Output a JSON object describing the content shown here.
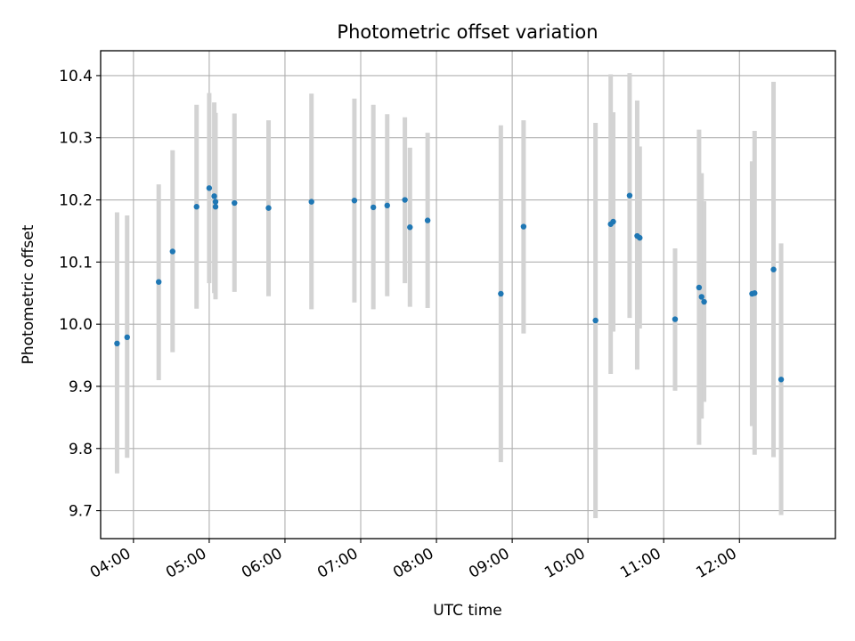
{
  "chart_data": {
    "type": "scatter",
    "title": "Photometric offset variation",
    "xlabel": "UTC time",
    "ylabel": "Photometric offset",
    "grid": true,
    "x_unit": "UTC time of day (HH:MM)",
    "xlim": [
      "03:34",
      "13:16"
    ],
    "ylim": [
      9.655,
      10.44
    ],
    "x_tick_labels": [
      "04:00",
      "05:00",
      "06:00",
      "07:00",
      "08:00",
      "09:00",
      "10:00",
      "11:00",
      "12:00"
    ],
    "x_ticks": [
      "04:00",
      "05:00",
      "06:00",
      "07:00",
      "08:00",
      "09:00",
      "10:00",
      "11:00",
      "12:00"
    ],
    "y_ticks": [
      9.7,
      9.8,
      9.9,
      10.0,
      10.1,
      10.2,
      10.3,
      10.4
    ],
    "y_tick_labels": [
      "9.7",
      "9.8",
      "9.9",
      "10.0",
      "10.1",
      "10.2",
      "10.3",
      "10.4"
    ],
    "marker_color": "#1f77b4",
    "errorbar_color": "#d3d3d3",
    "points": [
      {
        "t": "03:47",
        "y": 9.969,
        "ylo": 9.76,
        "yhi": 10.18
      },
      {
        "t": "03:55",
        "y": 9.979,
        "ylo": 9.785,
        "yhi": 10.175
      },
      {
        "t": "04:20",
        "y": 10.068,
        "ylo": 9.91,
        "yhi": 10.225
      },
      {
        "t": "04:31",
        "y": 10.117,
        "ylo": 9.955,
        "yhi": 10.28
      },
      {
        "t": "04:50",
        "y": 10.189,
        "ylo": 10.025,
        "yhi": 10.353
      },
      {
        "t": "05:00",
        "y": 10.219,
        "ylo": 10.066,
        "yhi": 10.372
      },
      {
        "t": "05:04",
        "y": 10.206,
        "ylo": 10.05,
        "yhi": 10.357
      },
      {
        "t": "05:05",
        "y": 10.197,
        "ylo": 10.04,
        "yhi": 10.34
      },
      {
        "t": "05:05",
        "y": 10.189,
        "ylo": 10.055,
        "yhi": 10.32
      },
      {
        "t": "05:20",
        "y": 10.195,
        "ylo": 10.052,
        "yhi": 10.339
      },
      {
        "t": "05:47",
        "y": 10.187,
        "ylo": 10.045,
        "yhi": 10.328
      },
      {
        "t": "06:21",
        "y": 10.197,
        "ylo": 10.024,
        "yhi": 10.371
      },
      {
        "t": "06:55",
        "y": 10.199,
        "ylo": 10.035,
        "yhi": 10.363
      },
      {
        "t": "07:10",
        "y": 10.188,
        "ylo": 10.024,
        "yhi": 10.353
      },
      {
        "t": "07:21",
        "y": 10.191,
        "ylo": 10.045,
        "yhi": 10.338
      },
      {
        "t": "07:35",
        "y": 10.2,
        "ylo": 10.066,
        "yhi": 10.333
      },
      {
        "t": "07:39",
        "y": 10.156,
        "ylo": 10.028,
        "yhi": 10.284
      },
      {
        "t": "07:53",
        "y": 10.167,
        "ylo": 10.026,
        "yhi": 10.308
      },
      {
        "t": "08:51",
        "y": 10.049,
        "ylo": 9.778,
        "yhi": 10.32
      },
      {
        "t": "09:09",
        "y": 10.157,
        "ylo": 9.985,
        "yhi": 10.328
      },
      {
        "t": "10:06",
        "y": 10.006,
        "ylo": 9.688,
        "yhi": 10.324
      },
      {
        "t": "10:18",
        "y": 10.161,
        "ylo": 9.92,
        "yhi": 10.402
      },
      {
        "t": "10:20",
        "y": 10.165,
        "ylo": 9.988,
        "yhi": 10.341
      },
      {
        "t": "10:33",
        "y": 10.207,
        "ylo": 10.01,
        "yhi": 10.404
      },
      {
        "t": "10:39",
        "y": 10.142,
        "ylo": 9.927,
        "yhi": 10.36
      },
      {
        "t": "10:41",
        "y": 10.139,
        "ylo": 9.993,
        "yhi": 10.286
      },
      {
        "t": "11:09",
        "y": 10.008,
        "ylo": 9.893,
        "yhi": 10.122
      },
      {
        "t": "11:28",
        "y": 10.059,
        "ylo": 9.806,
        "yhi": 10.313
      },
      {
        "t": "11:30",
        "y": 10.044,
        "ylo": 9.848,
        "yhi": 10.243
      },
      {
        "t": "11:32",
        "y": 10.036,
        "ylo": 9.875,
        "yhi": 10.198
      },
      {
        "t": "12:10",
        "y": 10.049,
        "ylo": 9.836,
        "yhi": 10.262
      },
      {
        "t": "12:12",
        "y": 10.05,
        "ylo": 9.79,
        "yhi": 10.311
      },
      {
        "t": "12:27",
        "y": 10.088,
        "ylo": 9.786,
        "yhi": 10.39
      },
      {
        "t": "12:33",
        "y": 9.911,
        "ylo": 9.693,
        "yhi": 10.13
      }
    ]
  }
}
